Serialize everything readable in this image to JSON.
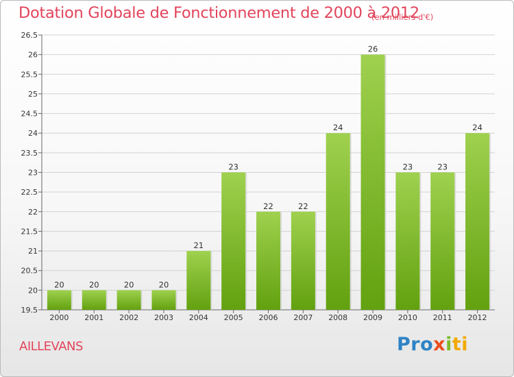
{
  "header": {
    "title": "Dotation Globale de Fonctionnement de 2000 à 2012",
    "unit": "(en milliers d'€)"
  },
  "footer": {
    "city": "AILLEVANS",
    "logo": [
      "Pro",
      "x",
      "i",
      "ti"
    ]
  },
  "colors": {
    "bar_top": "#9fd14f",
    "bar_bottom": "#62a10f",
    "title": "#e2445b"
  },
  "chart_data": {
    "type": "bar",
    "categories": [
      "2000",
      "2001",
      "2002",
      "2003",
      "2004",
      "2005",
      "2006",
      "2007",
      "2008",
      "2009",
      "2010",
      "2011",
      "2012"
    ],
    "values": [
      20,
      20,
      20,
      20,
      21,
      23,
      22,
      22,
      24,
      26,
      23,
      23,
      24
    ],
    "ylim": [
      19.5,
      26.5
    ],
    "yticks": [
      "19.5",
      "20",
      "20.5",
      "21",
      "21.5",
      "22",
      "22.5",
      "23",
      "23.5",
      "24",
      "24.5",
      "25",
      "25.5",
      "26",
      "26.5"
    ],
    "grid": true
  }
}
